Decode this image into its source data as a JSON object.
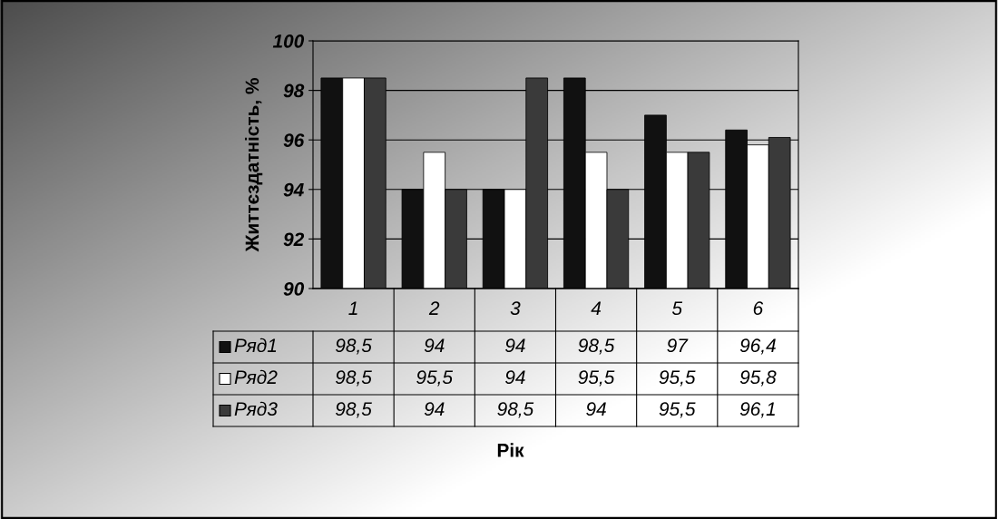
{
  "chart_data": {
    "type": "bar",
    "ylabel": "Життєздатність, %",
    "categories": [
      "1",
      "2",
      "3",
      "4",
      "5",
      "6"
    ],
    "series": [
      {
        "name": "Ряд1",
        "color": "#111111",
        "values": [
          98.5,
          94,
          94,
          98.5,
          97,
          96.4
        ],
        "value_labels": [
          "98,5",
          "94",
          "94",
          "98,5",
          "97",
          "96,4"
        ]
      },
      {
        "name": "Ряд2",
        "color": "#ffffff",
        "values": [
          98.5,
          95.5,
          94,
          95.5,
          95.5,
          95.8
        ],
        "value_labels": [
          "98,5",
          "95,5",
          "94",
          "95,5",
          "95,5",
          "95,8"
        ]
      },
      {
        "name": "Ряд3",
        "color": "#3a3a3a",
        "values": [
          98.5,
          94,
          98.5,
          94,
          95.5,
          96.1
        ],
        "value_labels": [
          "98,5",
          "94",
          "98,5",
          "94",
          "95,5",
          "96,1"
        ]
      }
    ],
    "ylim": [
      90,
      100
    ],
    "yticks": [
      90,
      92,
      94,
      96,
      98,
      100
    ],
    "grid": "y",
    "legend": "bottom left",
    "annotations": [
      "Рік"
    ]
  }
}
